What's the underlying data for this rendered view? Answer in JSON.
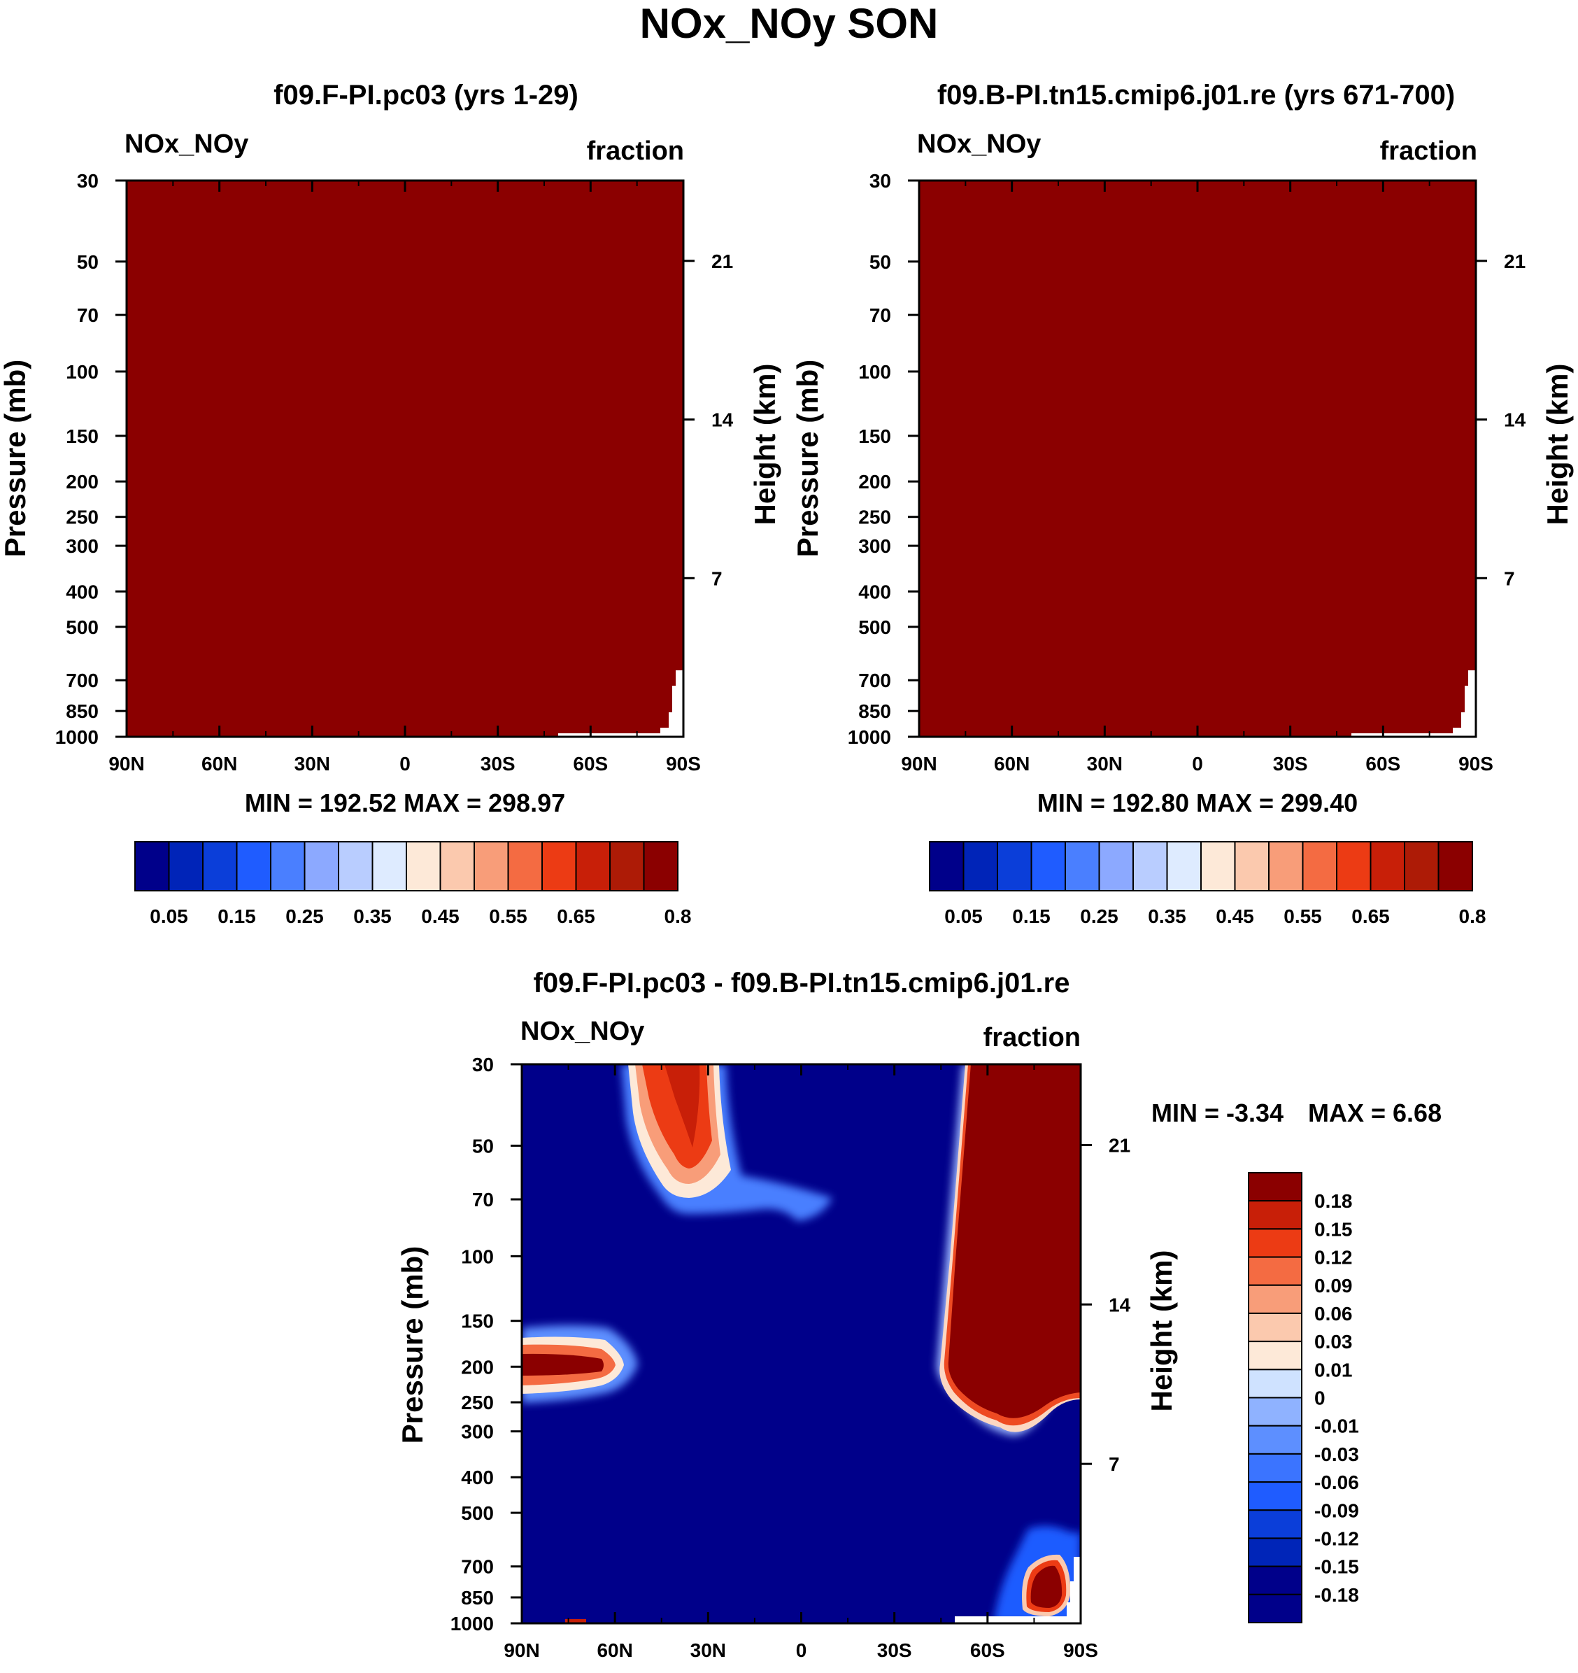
{
  "figure_title": "NOx_NOy SON",
  "palettes": {
    "abs": [
      "#00008a",
      "#0024b8",
      "#0b3ed9",
      "#1f5cff",
      "#4a7fff",
      "#8ca9ff",
      "#b9cdff",
      "#deebff",
      "#fde9d8",
      "#fbc9ae",
      "#f89d79",
      "#f46b42",
      "#ec3b14",
      "#c81f08",
      "#ad1b06",
      "#8b0000"
    ],
    "diff": [
      "#00008a",
      "#0025b8",
      "#0b3ed9",
      "#1f5cff",
      "#3b74ff",
      "#5d8fff",
      "#8fb2ff",
      "#cfe2ff",
      "#fde9d8",
      "#fbc9ae",
      "#f89d79",
      "#f46b42",
      "#ec3b14",
      "#c81f08",
      "#8b0000"
    ],
    "fill_dark_red": "#8b0000",
    "fill_dark_blue": "#00008a"
  },
  "chart_data": [
    {
      "id": "panel1",
      "type": "heatmap",
      "title": "f09.F-PI.pc03 (yrs 1-29)",
      "left_label": "NOx_NOy",
      "right_label": "fraction",
      "ylabel": "Pressure (mb)",
      "ylabel_right": "Height (km)",
      "x_ticks": [
        "90N",
        "60N",
        "30N",
        "0",
        "30S",
        "60S",
        "90S"
      ],
      "x_range": [
        90,
        -90
      ],
      "y_ticks": [
        30,
        50,
        70,
        100,
        150,
        200,
        250,
        300,
        400,
        500,
        700,
        850,
        1000
      ],
      "y_range_mb": [
        30,
        1000
      ],
      "y_scale": "log",
      "height_ticks_km": [
        21,
        14,
        7
      ],
      "stats": "MIN = 192.52  MAX = 298.97",
      "field_value": 0.85,
      "missing_region_note": "white gap near 90S below ~700 mb",
      "colorbar": {
        "levels": 16,
        "labels": [
          "0.05",
          "0.15",
          "0.25",
          "0.35",
          "0.45",
          "0.55",
          "0.65",
          "0.8"
        ]
      }
    },
    {
      "id": "panel2",
      "type": "heatmap",
      "title": "f09.B-PI.tn15.cmip6.j01.re (yrs 671-700)",
      "left_label": "NOx_NOy",
      "right_label": "fraction",
      "ylabel": "Pressure (mb)",
      "ylabel_right": "Height (km)",
      "x_ticks": [
        "90N",
        "60N",
        "30N",
        "0",
        "30S",
        "60S",
        "90S"
      ],
      "x_range": [
        90,
        -90
      ],
      "y_ticks": [
        30,
        50,
        70,
        100,
        150,
        200,
        250,
        300,
        400,
        500,
        700,
        850,
        1000
      ],
      "y_range_mb": [
        30,
        1000
      ],
      "y_scale": "log",
      "height_ticks_km": [
        21,
        14,
        7
      ],
      "stats": "MIN = 192.80  MAX = 299.40",
      "field_value": 0.85,
      "colorbar": {
        "levels": 16,
        "labels": [
          "0.05",
          "0.15",
          "0.25",
          "0.35",
          "0.45",
          "0.55",
          "0.65",
          "0.8"
        ]
      }
    },
    {
      "id": "panel3",
      "type": "heatmap",
      "title": "f09.F-PI.pc03 - f09.B-PI.tn15.cmip6.j01.re",
      "left_label": "NOx_NOy",
      "right_label": "fraction",
      "ylabel": "Pressure (mb)",
      "ylabel_right": "Height (km)",
      "x_ticks": [
        "90N",
        "60N",
        "30N",
        "0",
        "30S",
        "60S",
        "90S"
      ],
      "x_range": [
        90,
        -90
      ],
      "y_ticks": [
        30,
        50,
        70,
        100,
        150,
        200,
        250,
        300,
        400,
        500,
        700,
        850,
        1000
      ],
      "y_range_mb": [
        30,
        1000
      ],
      "y_scale": "log",
      "height_ticks_km": [
        21,
        14,
        7
      ],
      "stats_min": "MIN =  -3.34",
      "stats_max": "MAX =   6.68",
      "field_description": "mostly below -0.18 (dark blue); positive > 0.18 over 45S-90S above ~300 mb, plume near 35N-45N at 30-70 mb, band near 70N-90N at 200 mb, blob near 70S-85S at 700-900 mb",
      "colorbar": {
        "labels_top_to_bottom": [
          "0.18",
          "0.15",
          "0.12",
          "0.09",
          "0.06",
          "0.03",
          "0.01",
          "0",
          "-0.01",
          "-0.03",
          "-0.06",
          "-0.09",
          "-0.12",
          "-0.15",
          "-0.18"
        ]
      }
    }
  ]
}
